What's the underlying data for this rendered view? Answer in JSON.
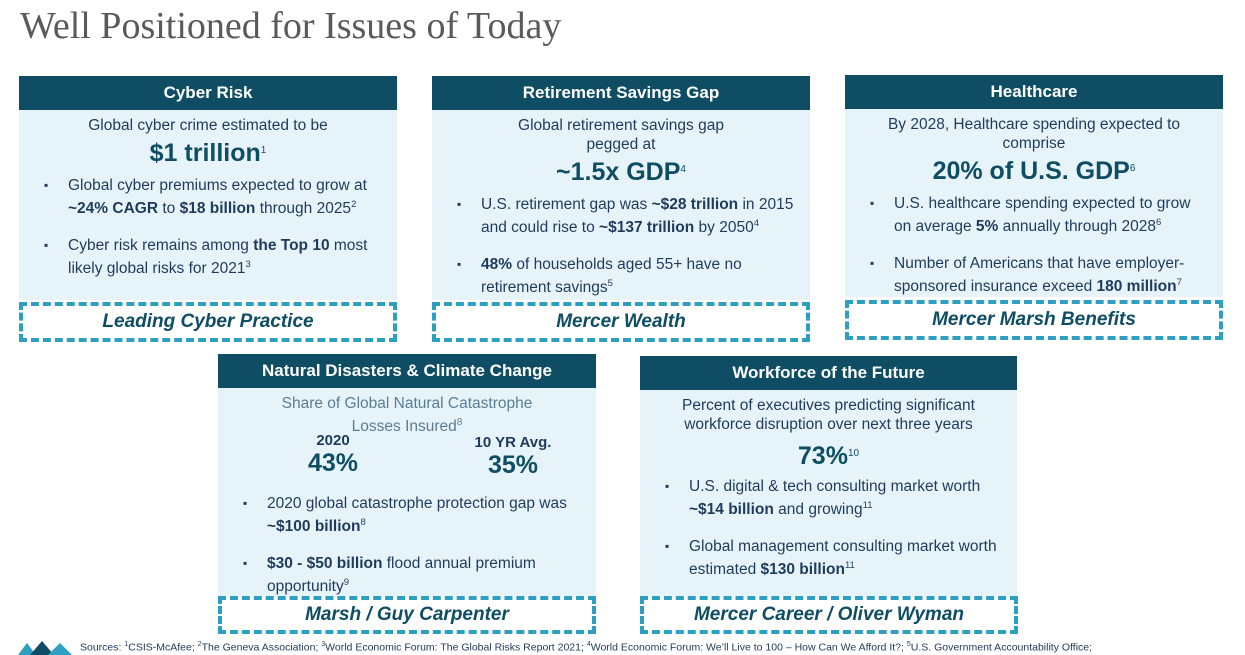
{
  "page": {
    "title": "Well Positioned for Issues of Today"
  },
  "cards": {
    "cyber": {
      "header": "Cyber Risk",
      "intro": "Global cyber crime estimated to be",
      "big": "$1 trillion",
      "big_sup": "1",
      "b1": {
        "t1": "Global cyber premiums expected to grow at ",
        "s1": "~24% CAGR",
        "t2": " to ",
        "s2": "$18 billion",
        "t3": " through 2025",
        "sup": "2"
      },
      "b2": {
        "t1": "Cyber risk remains among ",
        "s1": "the Top 10",
        "t2": " most likely global risks for 2021",
        "sup": "3"
      },
      "footer": "Leading Cyber Practice"
    },
    "retirement": {
      "header": "Retirement Savings Gap",
      "intro": "Global retirement savings gap pegged at",
      "big": "~1.5x GDP",
      "big_sup": "4",
      "b1": {
        "t1": "U.S. retirement gap was ",
        "s1": "~$28 trillion",
        "t2": " in 2015 and could rise to ",
        "s2": "~$137 trillion",
        "t3": " by 2050",
        "sup": "4"
      },
      "b2": {
        "s1": "48%",
        "t1": " of households aged 55+ have no retirement savings",
        "sup": "5"
      },
      "footer": "Mercer Wealth"
    },
    "health": {
      "header": "Healthcare",
      "intro": "By 2028, Healthcare spending expected to comprise",
      "big": "20% of U.S. GDP",
      "big_sup": "6",
      "b1": {
        "t1": "U.S. healthcare spending expected to grow on average ",
        "s1": "5%",
        "t2": " annually through 2028",
        "sup": "6"
      },
      "b2": {
        "t1": "Number of Americans that have employer-sponsored insurance exceed ",
        "s1": "180 million",
        "sup": "7"
      },
      "footer": "Mercer Marsh Benefits"
    },
    "climate": {
      "header": "Natural Disasters & Climate Change",
      "intro": "Share of Global Natural Catastrophe Losses Insured",
      "intro_sup": "8",
      "stat1_label": "2020",
      "stat1_value": "43%",
      "stat2_label": "10 YR Avg.",
      "stat2_value": "35%",
      "b1": {
        "t1": "2020 global catastrophe protection gap was ",
        "s1": "~$100 billion",
        "sup": "8"
      },
      "b2": {
        "s1": "$30 - $50 billion",
        "t1": " flood annual premium opportunity",
        "sup": "9"
      },
      "footer": "Marsh / Guy Carpenter"
    },
    "workforce": {
      "header": "Workforce of the Future",
      "intro": "Percent of executives predicting significant workforce disruption over next three years",
      "big": "73%",
      "big_sup": "10",
      "b1": {
        "t1": "U.S. digital & tech consulting market worth ",
        "s1": "~$14 billion",
        "t2": " and growing",
        "sup": "11"
      },
      "b2": {
        "t1": "Global management consulting market worth estimated ",
        "s1": "$130 billion",
        "sup": "11"
      },
      "footer": "Mercer Career / Oliver Wyman"
    }
  },
  "bullet_glyph": "▪",
  "sources": {
    "label": "Sources: ",
    "s1n": "1",
    "s1": "CSIS-McAfee; ",
    "s2n": "2",
    "s2": "The Geneva Association; ",
    "s3n": "3",
    "s3": "World Economic Forum: The Global Risks Report 2021; ",
    "s4n": "4",
    "s4": "World Economic Forum: We’ll Live to 100 – How Can We Afford It?; ",
    "s5n": "5",
    "s5": "U.S. Government Accountability Office;"
  },
  "colors": {
    "header_bg": "#0e4d63",
    "body_bg": "#e6f4f9",
    "dash": "#2d9fc1"
  },
  "icons": {
    "logo": "mmc-logo-icon"
  }
}
